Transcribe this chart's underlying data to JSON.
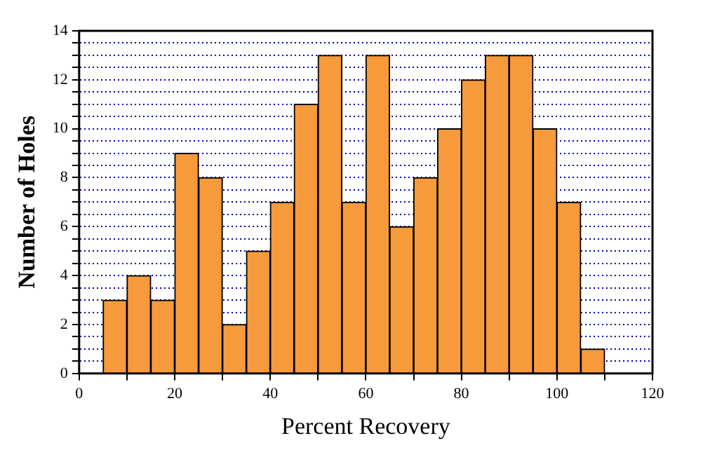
{
  "chart_data": {
    "type": "histogram",
    "xlabel": "Percent Recovery",
    "ylabel": "Number of Holes",
    "bins": [
      5,
      10,
      15,
      20,
      25,
      30,
      35,
      40,
      45,
      50,
      55,
      60,
      65,
      70,
      75,
      80,
      85,
      90,
      95,
      100,
      105,
      110
    ],
    "values": [
      3,
      4,
      3,
      9,
      8,
      2,
      5,
      7,
      11,
      13,
      7,
      13,
      6,
      8,
      10,
      12,
      13,
      13,
      10,
      7,
      1
    ],
    "color": "#f79a3c",
    "xlim": [
      0,
      120
    ],
    "xticks": [
      0,
      {
        "value": 10,
        "label": null
      },
      20,
      {
        "value": 30,
        "label": null
      },
      40,
      {
        "value": 50,
        "label": null
      },
      60,
      {
        "value": 70,
        "label": null
      },
      80,
      {
        "value": 90,
        "label": null
      },
      100,
      {
        "value": 110,
        "label": null
      },
      120
    ],
    "ylim": [
      0,
      14
    ],
    "yticks": [
      0,
      {
        "value": 0.5,
        "label": null
      },
      {
        "value": 1,
        "label": null
      },
      {
        "value": 1.5,
        "label": null
      },
      2,
      {
        "value": 2.5,
        "label": null
      },
      {
        "value": 3,
        "label": null
      },
      {
        "value": 3.5,
        "label": null
      },
      4,
      {
        "value": 4.5,
        "label": null
      },
      {
        "value": 5,
        "label": null
      },
      {
        "value": 5.5,
        "label": null
      },
      6,
      {
        "value": 6.5,
        "label": null
      },
      {
        "value": 7,
        "label": null
      },
      {
        "value": 7.5,
        "label": null
      },
      8,
      {
        "value": 8.5,
        "label": null
      },
      {
        "value": 9,
        "label": null
      },
      {
        "value": 9.5,
        "label": null
      },
      10,
      {
        "value": 10.5,
        "label": null
      },
      {
        "value": 11,
        "label": null
      },
      {
        "value": 11.5,
        "label": null
      },
      12,
      {
        "value": 12.5,
        "label": null
      },
      {
        "value": 13,
        "label": null
      },
      {
        "value": 13.5,
        "label": null
      },
      14
    ],
    "grid": "y"
  }
}
